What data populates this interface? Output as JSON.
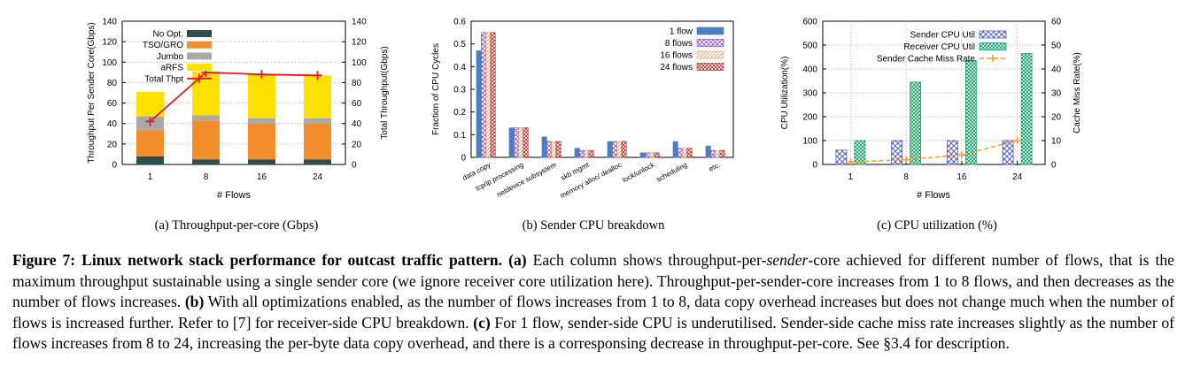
{
  "figure": {
    "caption": {
      "label": "Figure 7:",
      "title": "Linux network stack performance for outcast traffic pattern.",
      "parts": [
        {
          "tag": "(a)",
          "text_before": "Each column shows throughput-per-",
          "emph": "sender",
          "text_after": "-core achieved for different number of flows, that is the maximum throughput sustainable using a single sender core (we ignore receiver core utilization here). Throughput-per-sender-core increases from 1 to 8 flows, and then decreases as the number of flows increases."
        },
        {
          "tag": "(b)",
          "text": "With all optimizations enabled, as the number of flows increases from 1 to 8, data copy overhead increases but does not change much when the number of flows is increased further. Refer to [7] for receiver-side CPU breakdown."
        },
        {
          "tag": "(c)",
          "text": "For 1 flow, sender-side CPU is underutilised. Sender-side cache miss rate increases slightly as the number of flows increases from 8 to 24, increasing the per-byte data copy overhead, and there is a corresponsing decrease in throughput-per-core. See §3.4 for description."
        }
      ]
    }
  },
  "chart_data": [
    {
      "type": "bar",
      "stacked": true,
      "subcaption": "(a)  Throughput-per-core (Gbps)",
      "categories": [
        "1",
        "8",
        "16",
        "24"
      ],
      "xlabel": "# Flows",
      "ylabel": "Throughput Per Sender Core(Gbps)",
      "y2label": "Total Throughput(Gbps)",
      "ylim": [
        0,
        140
      ],
      "y2lim": [
        0,
        140
      ],
      "yticks": [
        0,
        20,
        40,
        60,
        80,
        100,
        120,
        140
      ],
      "legend_position": "top-left",
      "series": [
        {
          "name": "No Opt.",
          "color": "#2f4f4f",
          "values": [
            8,
            5,
            5,
            5
          ]
        },
        {
          "name": "TSO/GRO",
          "color": "#f28e2b",
          "values": [
            26,
            38,
            35,
            35
          ]
        },
        {
          "name": "Jumbo",
          "color": "#a9a9a9",
          "values": [
            13,
            5,
            5,
            5
          ]
        },
        {
          "name": "aRFS",
          "color": "#ffe000",
          "values": [
            24,
            43,
            43,
            42
          ]
        }
      ],
      "line_series": {
        "name": "Total Thpt",
        "color": "#e41a1c",
        "axis": "right",
        "values": [
          42,
          90,
          88,
          87
        ]
      }
    },
    {
      "type": "bar",
      "subcaption": "(b)  Sender CPU breakdown",
      "categories": [
        "data copy",
        "tcp/ip processing",
        "netdevice subsystem",
        "skb mgmt",
        "memory alloc/ dealloc",
        "lock/unlock",
        "scheduling",
        "etc."
      ],
      "ylabel": "Fraction of CPU Cycles",
      "ylim": [
        0,
        0.6
      ],
      "yticks": [
        0,
        0.1,
        0.2,
        0.3,
        0.4,
        0.5,
        0.6
      ],
      "legend_position": "top-right",
      "series": [
        {
          "name": "1 flow",
          "color": "#4a7fc1",
          "values": [
            0.47,
            0.13,
            0.09,
            0.04,
            0.07,
            0.02,
            0.07,
            0.05
          ]
        },
        {
          "name": "8 flows",
          "color": "#8a4fc0",
          "values": [
            0.55,
            0.13,
            0.07,
            0.03,
            0.07,
            0.02,
            0.04,
            0.03
          ]
        },
        {
          "name": "16 flows",
          "color": "#f0a060",
          "values": [
            0.55,
            0.13,
            0.07,
            0.03,
            0.07,
            0.02,
            0.04,
            0.03
          ]
        },
        {
          "name": "24 flows",
          "color": "#b8322e",
          "values": [
            0.55,
            0.13,
            0.07,
            0.03,
            0.07,
            0.02,
            0.04,
            0.03
          ]
        }
      ]
    },
    {
      "type": "bar",
      "subcaption": "(c)  CPU utilization (%)",
      "categories": [
        "1",
        "8",
        "16",
        "24"
      ],
      "xlabel": "# Flows",
      "ylabel": "CPU Utilization(%)",
      "y2label": "Cache Miss Rate(%)",
      "ylim": [
        0,
        600
      ],
      "y2lim": [
        0,
        60
      ],
      "yticks": [
        0,
        100,
        200,
        300,
        400,
        500,
        600
      ],
      "y2ticks": [
        0,
        10,
        20,
        30,
        40,
        50,
        60
      ],
      "legend_position": "top-right",
      "series": [
        {
          "name": "Sender CPU Util",
          "color": "#5060c0",
          "values": [
            60,
            100,
            100,
            100
          ]
        },
        {
          "name": "Receiver CPU Util",
          "color": "#22a070",
          "values": [
            100,
            345,
            435,
            465
          ]
        }
      ],
      "line_series": {
        "name": "Sender Cache Miss Rate",
        "color": "#f5a030",
        "axis": "right",
        "values": [
          1,
          2,
          4,
          10
        ]
      }
    }
  ]
}
